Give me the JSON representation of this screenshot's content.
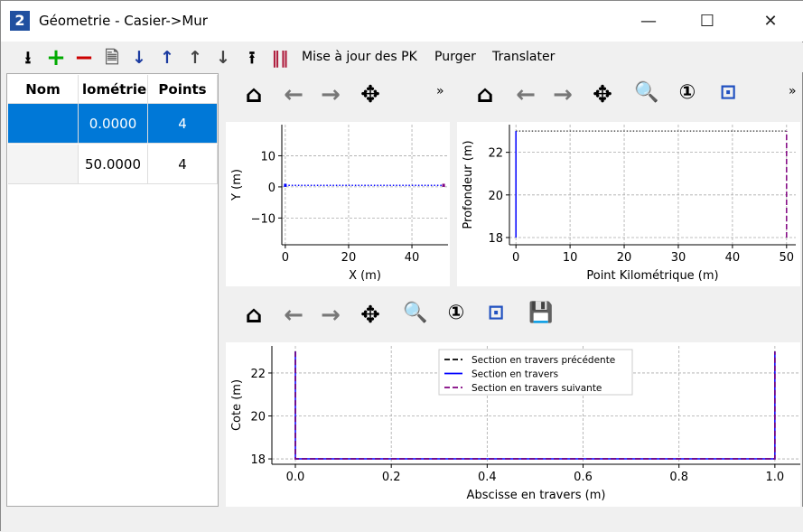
{
  "window": {
    "title": "Géometrie - Casier->Mur",
    "minimize": "—",
    "maximize": "☐",
    "close": "✕"
  },
  "toolbar": {
    "items": [
      {
        "name": "import-icon",
        "glyph": "⭳"
      },
      {
        "name": "add-icon",
        "glyph": "+"
      },
      {
        "name": "remove-icon",
        "glyph": "−"
      },
      {
        "name": "document-icon",
        "glyph": "🗎"
      },
      {
        "name": "sort-ascending-icon",
        "glyph": "↓"
      },
      {
        "name": "sort-descending-icon",
        "glyph": "↑"
      },
      {
        "name": "move-up-icon",
        "glyph": "↑"
      },
      {
        "name": "move-down-icon",
        "glyph": "↓"
      },
      {
        "name": "export-icon",
        "glyph": "⭱"
      },
      {
        "name": "barcode-icon",
        "glyph": "‖‖"
      }
    ],
    "update_pk": "Mise à jour des PK",
    "purge": "Purger",
    "translate": "Translater"
  },
  "table": {
    "columns": [
      "Nom",
      "lométrie",
      "Points"
    ],
    "rows": [
      {
        "nom": "",
        "pk": "0.0000",
        "points": "4",
        "selected": true
      },
      {
        "nom": "",
        "pk": "50.0000",
        "points": "4",
        "selected": false
      }
    ]
  },
  "plot_toolbar": {
    "home": "⌂",
    "back": "←",
    "forward": "→",
    "pan": "✥",
    "more": "»",
    "zoom": "🔍",
    "zoom1": "①",
    "zoomfit": "⊡",
    "save": "💾"
  },
  "colors": {
    "selection": "#0078d7",
    "blue": "#0000ff",
    "purple": "#800080",
    "black": "#000000"
  },
  "chart_data": [
    {
      "type": "line",
      "xlabel": "X (m)",
      "ylabel": "Y (m)",
      "xlim": [
        -1.1,
        51.4
      ],
      "ylim": [
        -18.6,
        20
      ],
      "xticks": [
        0,
        20,
        40
      ],
      "yticks": [
        -10,
        0,
        10
      ],
      "grid": true,
      "series": [
        {
          "color": "#0000ff",
          "style": "dotted",
          "x": [
            0,
            50
          ],
          "y": [
            0.5,
            0.5
          ]
        },
        {
          "color": "#0000ff",
          "style": "solid",
          "x": [
            0,
            0
          ],
          "y": [
            0,
            1
          ]
        },
        {
          "color": "#800080",
          "style": "solid",
          "x": [
            50,
            50
          ],
          "y": [
            0,
            1
          ]
        }
      ]
    },
    {
      "type": "line",
      "xlabel": "Point Kilométrique (m)",
      "ylabel": "Profondeur (m)",
      "xlim": [
        -1.2,
        51.7
      ],
      "ylim": [
        17.66,
        23.3
      ],
      "xticks": [
        0,
        10,
        20,
        30,
        40,
        50
      ],
      "yticks": [
        18,
        20,
        22
      ],
      "grid": true,
      "series": [
        {
          "color": "#555555",
          "style": "dotted",
          "x": [
            0,
            50
          ],
          "y": [
            23,
            23
          ]
        },
        {
          "color": "#0000ff",
          "style": "solid",
          "x": [
            0,
            0
          ],
          "y": [
            18,
            23
          ]
        },
        {
          "color": "#800080",
          "style": "dashed",
          "x": [
            50,
            50
          ],
          "y": [
            18,
            23
          ]
        }
      ]
    },
    {
      "type": "line",
      "xlabel": "Abscisse en travers (m)",
      "ylabel": "Cote (m)",
      "xlim": [
        -0.049,
        1.053
      ],
      "ylim": [
        17.75,
        23.26
      ],
      "xticks": [
        0.0,
        0.2,
        0.4,
        0.6,
        0.8,
        1.0
      ],
      "yticks": [
        18,
        20,
        22
      ],
      "grid": true,
      "legend": "top-center",
      "series": [
        {
          "name": "Section en travers précédente",
          "color": "#000000",
          "style": "dashed",
          "x": [
            0,
            0,
            1,
            1
          ],
          "y": [
            23,
            18,
            18,
            23
          ]
        },
        {
          "name": "Section en travers",
          "color": "#0000ff",
          "style": "solid",
          "x": [
            0,
            0,
            1,
            1
          ],
          "y": [
            23,
            18,
            18,
            23
          ]
        },
        {
          "name": "Section en travers suivante",
          "color": "#800080",
          "style": "dashed",
          "x": [
            0,
            0,
            1,
            1
          ],
          "y": [
            23,
            18,
            18,
            23
          ]
        }
      ]
    }
  ]
}
